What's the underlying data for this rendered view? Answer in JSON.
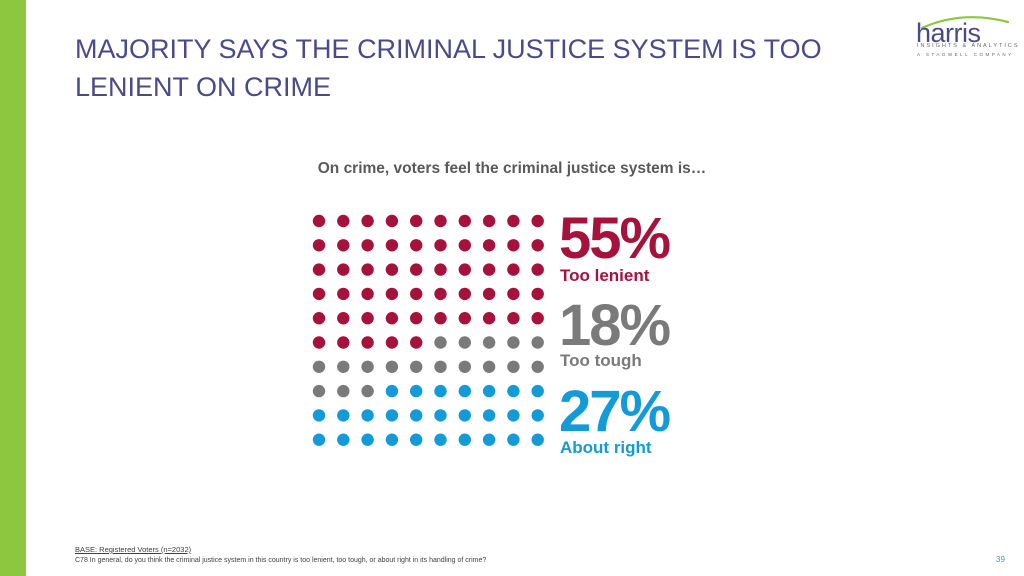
{
  "slide": {
    "title": "MAJORITY SAYS THE CRIMINAL JUSTICE SYSTEM IS TOO LENIENT ON CRIME",
    "subtitle": "On crime, voters feel the criminal justice system is…",
    "base_note": "BASE: Registered Voters (n=2032)",
    "question_note": "C78 In general, do you think the criminal justice system in this country is too lenient, too tough, or about right in its handling of crime?",
    "page_number": "39"
  },
  "logo": {
    "word": "harris",
    "tagline": "INSIGHTS & ANALYTICS",
    "company": "A STAGWELL COMPANY"
  },
  "colors": {
    "accent_bar": "#8dc63f",
    "title": "#4a4a8a"
  },
  "chart_data": {
    "type": "waffle",
    "grid": {
      "columns": 10,
      "rows": 10
    },
    "categories": [
      "Too lenient",
      "Too tough",
      "About right"
    ],
    "values": [
      55,
      18,
      27
    ],
    "value_labels": [
      "55%",
      "18%",
      "27%"
    ],
    "colors": [
      "#a6123c",
      "#7a7a7a",
      "#139ad8"
    ]
  }
}
